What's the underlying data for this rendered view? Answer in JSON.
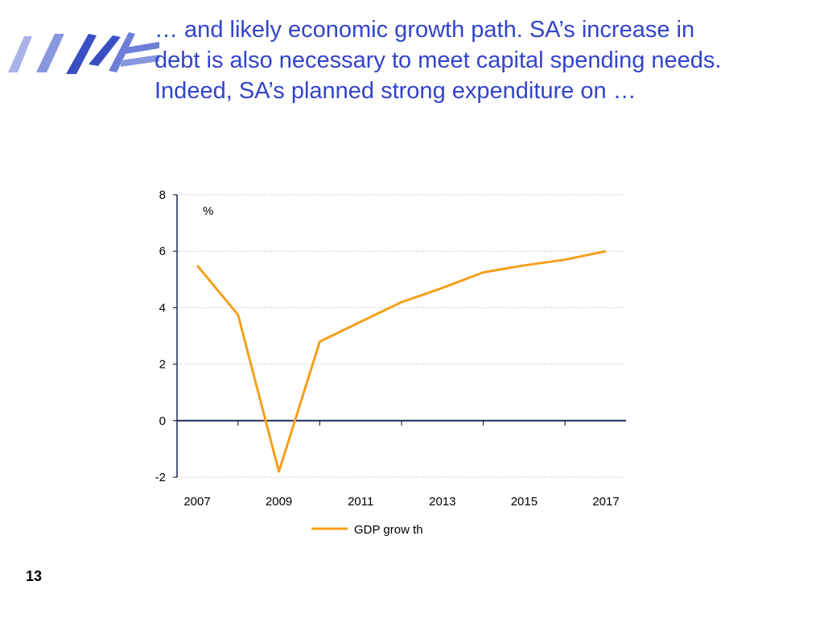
{
  "slide": {
    "headline_lines": [
      "… and likely economic growth path. SA’s increase in",
      "debt is also necessary to meet capital spending needs.",
      "Indeed, SA’s planned strong expenditure on …"
    ],
    "page_number": "13"
  },
  "colors": {
    "headline": "#3344cc",
    "series": "#f5a01a",
    "axis": "#1f2a5a",
    "grid": "#b0b0b0",
    "logo_blue": "#3b4fc4",
    "logo_light": "#a8b4e8"
  },
  "chart_data": {
    "type": "line",
    "title": "",
    "unit_label": "%",
    "xlabel": "",
    "ylabel": "",
    "ylim": [
      -2,
      8
    ],
    "yticks": [
      "8",
      "6",
      "4",
      "2",
      "0",
      "-2"
    ],
    "ytick_values": [
      8,
      6,
      4,
      2,
      0,
      -2
    ],
    "xlim": [
      2007,
      2017
    ],
    "xticks": [
      "2007",
      "2009",
      "2011",
      "2013",
      "2015",
      "2017"
    ],
    "xtick_values": [
      2007,
      2009,
      2011,
      2013,
      2015,
      2017
    ],
    "grid": true,
    "legend": "bottom",
    "series": [
      {
        "name": "GDP grow th",
        "x": [
          2007,
          2008,
          2009,
          2010,
          2011,
          2012,
          2013,
          2014,
          2015,
          2016,
          2017
        ],
        "values": [
          5.5,
          3.75,
          -1.8,
          2.8,
          3.5,
          4.2,
          4.7,
          5.25,
          5.5,
          5.7,
          6.0
        ]
      }
    ]
  }
}
